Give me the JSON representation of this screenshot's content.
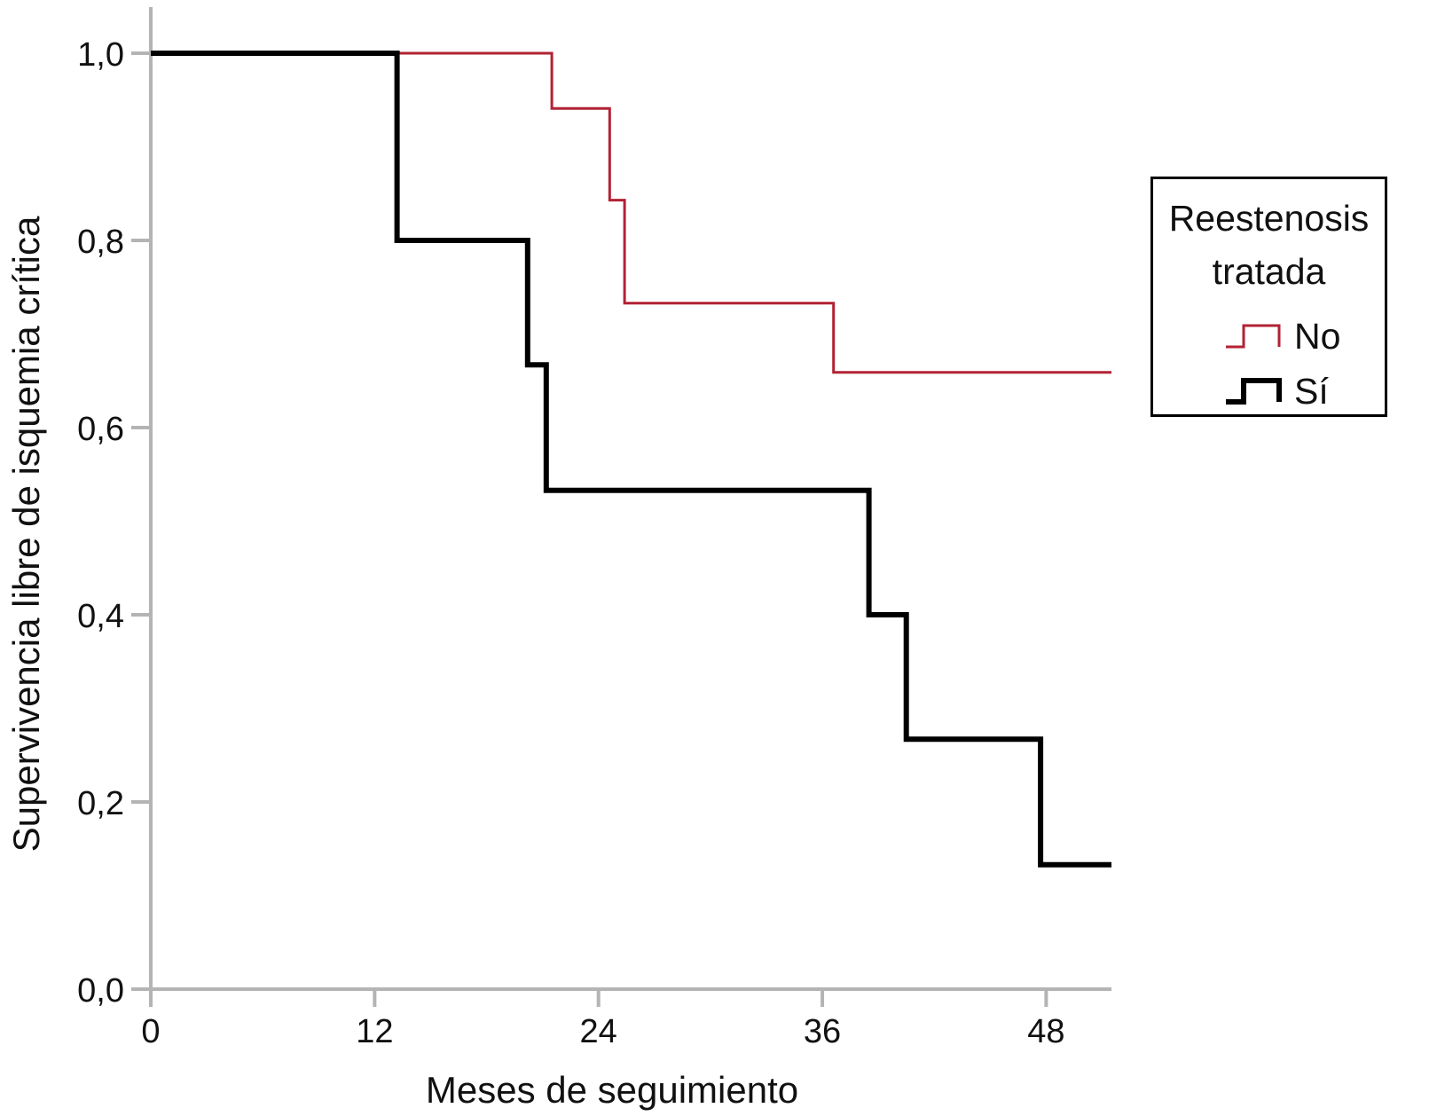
{
  "chart_data": {
    "type": "line",
    "step": true,
    "xlabel": "Meses de seguimiento",
    "ylabel": "Supervivencia libre de isquemia crítica",
    "xlim": [
      0,
      51.5
    ],
    "ylim": [
      0,
      1.05
    ],
    "xticks": [
      0,
      12,
      24,
      36,
      48
    ],
    "yticks": [
      0.0,
      0.2,
      0.4,
      0.6,
      0.8,
      1.0
    ],
    "ytick_labels": [
      "0,0",
      "0,2",
      "0,4",
      "0,6",
      "0,8",
      "1,0"
    ],
    "grid": false,
    "legend": {
      "title": "Reestenosis tratada",
      "position": "right"
    },
    "series": [
      {
        "name": "No",
        "color": "#b22234",
        "x": [
          0,
          21.5,
          24.6,
          25.4,
          36.6,
          51.5
        ],
        "y": [
          1.0,
          0.941,
          0.843,
          0.733,
          0.659,
          0.659
        ]
      },
      {
        "name": "Sí",
        "color": "#000000",
        "x": [
          0,
          13.2,
          20.2,
          21.2,
          38.5,
          40.5,
          47.7,
          51.5
        ],
        "y": [
          1.0,
          0.8,
          0.667,
          0.533,
          0.4,
          0.267,
          0.133,
          0.133
        ]
      }
    ]
  }
}
